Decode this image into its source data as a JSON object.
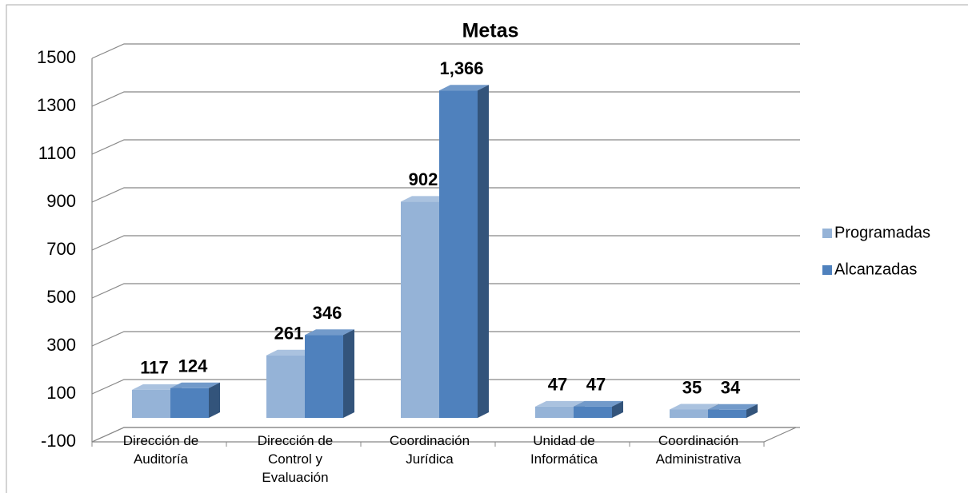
{
  "chart_data": {
    "type": "bar3d",
    "title": "Metas",
    "categories": [
      "Dirección de\nAuditoría",
      "Dirección de\nControl y\nEvaluación",
      "Coordinación\nJurídica",
      "Unidad de\nInformática",
      "Coordinación\nAdministrativa"
    ],
    "series": [
      {
        "name": "Programadas",
        "color": "#95b3d7",
        "values": [
          117,
          261,
          902,
          47,
          35
        ]
      },
      {
        "name": "Alcanzadas",
        "color": "#4f81bd",
        "values": [
          124,
          346,
          1366,
          47,
          34
        ],
        "value_labels": [
          "124",
          "346",
          "1,366",
          "47",
          "34"
        ]
      }
    ],
    "ylim": [
      -100,
      1500
    ],
    "yticks": [
      -100,
      100,
      300,
      500,
      700,
      900,
      1100,
      1300,
      1500
    ],
    "grid": true,
    "legend": "right"
  }
}
